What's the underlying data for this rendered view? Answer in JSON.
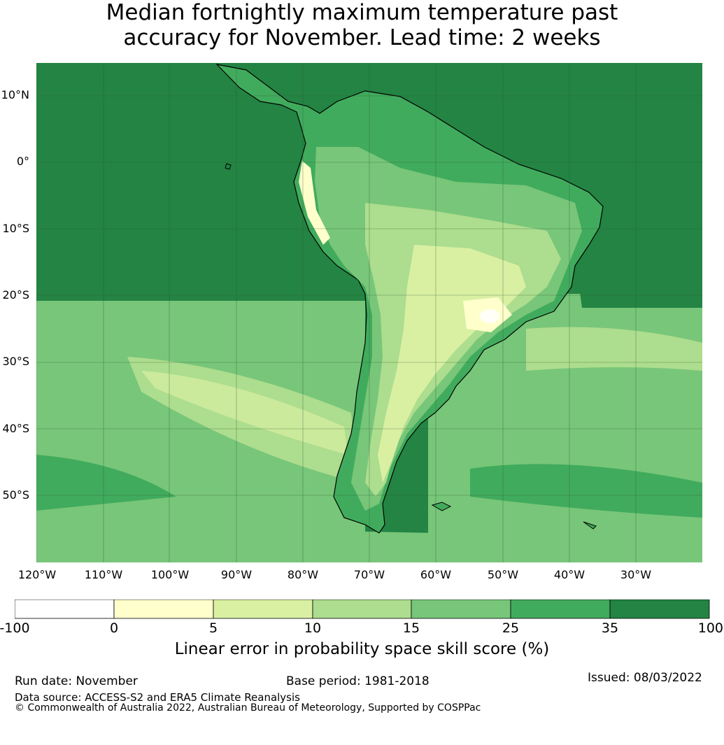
{
  "title": {
    "line1": "Median fortnightly maximum temperature past",
    "line2": "accuracy for November. Lead time: 2 weeks"
  },
  "map": {
    "lat_labels": [
      "10°N",
      "0°",
      "10°S",
      "20°S",
      "30°S",
      "40°S",
      "50°S"
    ],
    "lon_labels": [
      "120°W",
      "110°W",
      "100°W",
      "90°W",
      "80°W",
      "70°W",
      "60°W",
      "50°W",
      "40°W",
      "30°W"
    ],
    "colors": {
      "ocean_high": "#238443",
      "mid_high": "#41ab5d",
      "mid": "#78c679",
      "low": "#addd8e",
      "lower": "#d9f0a3",
      "lowest": "#ffffcc",
      "white": "#ffffff"
    }
  },
  "colorbar": {
    "ticks": [
      "-100",
      "0",
      "5",
      "10",
      "15",
      "25",
      "35",
      "100"
    ],
    "colors": [
      "#ffffff",
      "#ffffcc",
      "#d9f0a3",
      "#addd8e",
      "#78c679",
      "#41ab5d",
      "#238443"
    ],
    "label": "Linear error in probability space skill score (%)"
  },
  "footer": {
    "run_date": "Run date: November",
    "base_period": "Base period: 1981-2018",
    "issued": "Issued: 08/03/2022",
    "data_source": "Data source: ACCESS-S2 and ERA5 Climate Reanalysis",
    "copyright": "© Commonwealth of Australia 2022, Australian Bureau of Meteorology, Supported by COSPPac"
  }
}
